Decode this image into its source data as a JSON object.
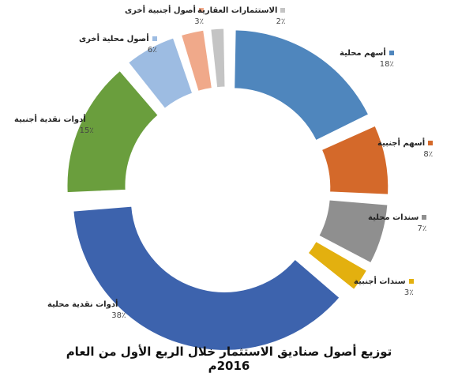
{
  "chart_data": {
    "type": "donut",
    "title": "توزيع أصول صناديق الاستثمار خلال الربع الأول من العام 2016م",
    "slices": [
      {
        "name": "أسهم محلية",
        "value": 18,
        "label": "18٪",
        "color": "#4f86bd"
      },
      {
        "name": "أسهم أجنبية",
        "value": 8,
        "label": "8٪",
        "color": "#d4692a"
      },
      {
        "name": "سندات محلية",
        "value": 7,
        "label": "7٪",
        "color": "#8f8f8f"
      },
      {
        "name": "سندات أجنبية",
        "value": 3,
        "label": "3٪",
        "color": "#e3b00f"
      },
      {
        "name": "أدوات نقدية محلية",
        "value": 38,
        "label": "38٪",
        "color": "#3d63ad"
      },
      {
        "name": "أدوات نقدية أجنبية",
        "value": 15,
        "label": "15٪",
        "color": "#6a9e3d"
      },
      {
        "name": "أصول محلية أخرى",
        "value": 6,
        "label": "6٪",
        "color": "#9dbce2"
      },
      {
        "name": "أصول أجنبية أخرى",
        "value": 3,
        "label": "3٪",
        "color": "#f0a98a"
      },
      {
        "name": "الاستثمارات العقارية",
        "value": 2,
        "label": "2٪",
        "color": "#c4c4c4"
      }
    ]
  }
}
